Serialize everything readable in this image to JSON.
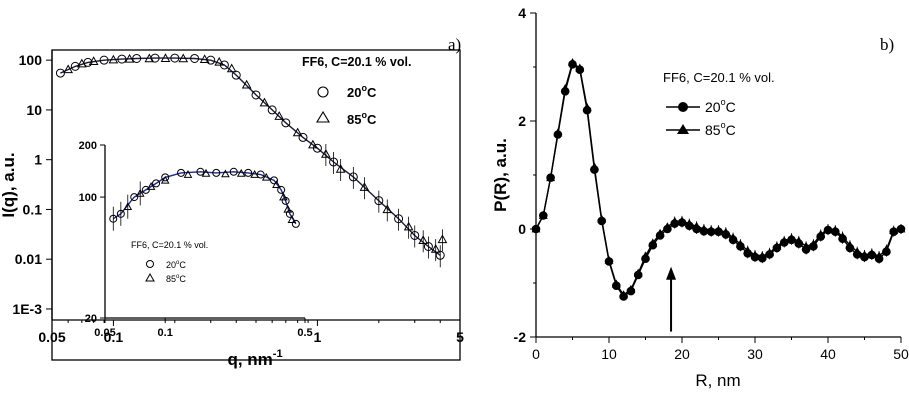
{
  "chart_data": [
    {
      "panel": "a)",
      "type": "scatter",
      "scale": "log-log",
      "xlabel": "q, nm",
      "xlabel_sup": "-1",
      "ylabel": "I(q), a.u.",
      "xlim": [
        0.05,
        5
      ],
      "ylim": [
        0.001,
        200
      ],
      "xticks": [
        {
          "v": 0.05,
          "t": "0.05"
        },
        {
          "v": 0.1,
          "t": "0.1"
        },
        {
          "v": 1,
          "t": "1"
        },
        {
          "v": 5,
          "t": "5"
        }
      ],
      "yticks": [
        {
          "v": 100,
          "t": "100"
        },
        {
          "v": 10,
          "t": "10"
        },
        {
          "v": 1,
          "t": "1"
        },
        {
          "v": 0.1,
          "t": "0.1"
        },
        {
          "v": 0.01,
          "t": "0.01"
        },
        {
          "v": 0.001,
          "t": "1E-3"
        }
      ],
      "legend": {
        "title": "FF6, C=20.1 % vol.",
        "placement": "top-right",
        "entries": [
          {
            "marker": "circle",
            "label": "20",
            "unit": "C"
          },
          {
            "marker": "triangle",
            "label": "85",
            "unit": "C"
          }
        ]
      },
      "series": [
        {
          "name": "20°C",
          "marker": "circle",
          "x": [
            0.055,
            0.065,
            0.075,
            0.09,
            0.11,
            0.13,
            0.16,
            0.2,
            0.25,
            0.3,
            0.35,
            0.4,
            0.5,
            0.6,
            0.7,
            0.85,
            1.0,
            1.2,
            1.5,
            2.0,
            2.5,
            3.0,
            3.5,
            4.0
          ],
          "y": [
            55,
            75,
            90,
            100,
            105,
            108,
            110,
            110,
            108,
            100,
            80,
            50,
            20,
            10,
            5.5,
            2.8,
            1.7,
            0.9,
            0.45,
            0.15,
            0.065,
            0.03,
            0.018,
            0.012
          ]
        },
        {
          "name": "85°C",
          "marker": "triangle",
          "x": [
            0.06,
            0.07,
            0.08,
            0.1,
            0.12,
            0.15,
            0.18,
            0.22,
            0.28,
            0.33,
            0.38,
            0.45,
            0.55,
            0.65,
            0.8,
            0.95,
            1.1,
            1.3,
            1.7,
            2.2,
            2.8,
            3.3,
            3.8,
            4.1
          ],
          "y": [
            65,
            85,
            95,
            102,
            106,
            108,
            109,
            108,
            104,
            92,
            68,
            32,
            14,
            7.5,
            3.5,
            2.0,
            1.3,
            0.65,
            0.28,
            0.1,
            0.045,
            0.024,
            0.016,
            0.025
          ]
        }
      ],
      "inset": {
        "scale": "log-log",
        "xlim": [
          0.05,
          0.5
        ],
        "ylim": [
          20,
          200
        ],
        "xticks": [
          {
            "v": 0.05,
            "t": "0.05"
          },
          {
            "v": 0.1,
            "t": "0.1"
          },
          {
            "v": 0.5,
            "t": "0.5"
          }
        ],
        "yticks": [
          {
            "v": 200,
            "t": "200"
          },
          {
            "v": 100,
            "t": "100"
          },
          {
            "v": 20,
            "t": "20"
          }
        ],
        "legend": {
          "title": "FF6, C=20.1 % vol.",
          "placement": "bottom-left",
          "entries": [
            {
              "marker": "circle",
              "label": "20",
              "unit": "C"
            },
            {
              "marker": "triangle",
              "label": "85",
              "unit": "C"
            }
          ]
        },
        "series": [
          {
            "name": "20°C",
            "marker": "circle",
            "x": [
              0.055,
              0.06,
              0.07,
              0.08,
              0.09,
              0.1,
              0.12,
              0.15,
              0.18,
              0.22,
              0.26,
              0.3,
              0.35,
              0.38,
              0.4,
              0.42,
              0.45
            ],
            "y": [
              75,
              80,
              100,
              110,
              120,
              130,
              138,
              140,
              138,
              140,
              138,
              135,
              125,
              110,
              95,
              80,
              70
            ]
          },
          {
            "name": "85°C",
            "marker": "triangle",
            "x": [
              0.065,
              0.075,
              0.085,
              0.1,
              0.13,
              0.16,
              0.2,
              0.24,
              0.28,
              0.32,
              0.36,
              0.39,
              0.41,
              0.43
            ],
            "y": [
              88,
              105,
              115,
              125,
              135,
              137,
              136,
              137,
              135,
              130,
              118,
              100,
              85,
              74
            ]
          }
        ]
      }
    },
    {
      "panel": "b)",
      "type": "line",
      "xlabel": "R, nm",
      "ylabel": "P(R), a.u.",
      "xlim": [
        0,
        50
      ],
      "ylim": [
        -2,
        4
      ],
      "xticks": [
        0,
        10,
        20,
        30,
        40,
        50
      ],
      "yticks": [
        4,
        2,
        0,
        -2
      ],
      "legend": {
        "title": "FF6, C=20.1 % vol.",
        "placement": "top-left",
        "entries": [
          {
            "marker": "circle",
            "label": "20",
            "unit": "C"
          },
          {
            "marker": "triangle",
            "label": "85",
            "unit": "C"
          }
        ]
      },
      "annotation": {
        "type": "arrow",
        "x": 18.5,
        "y_from": -1.9,
        "y_to": -0.7
      },
      "series": [
        {
          "name": "20°C",
          "marker": "circle",
          "x": [
            0,
            1,
            2,
            3,
            4,
            5,
            6,
            7,
            8,
            9,
            10,
            11,
            12,
            13,
            14,
            15,
            16,
            17,
            18,
            19,
            20,
            21,
            22,
            23,
            24,
            25,
            26,
            27,
            28,
            29,
            30,
            31,
            32,
            33,
            34,
            35,
            36,
            37,
            38,
            39,
            40,
            41,
            42,
            43,
            44,
            45,
            46,
            47,
            48,
            49,
            50
          ],
          "y": [
            0,
            0.25,
            0.95,
            1.75,
            2.55,
            3.05,
            2.95,
            2.2,
            1.1,
            0.15,
            -0.6,
            -1.05,
            -1.25,
            -1.15,
            -0.85,
            -0.55,
            -0.3,
            -0.12,
            0.0,
            0.1,
            0.12,
            0.06,
            0.0,
            -0.04,
            -0.05,
            -0.05,
            -0.1,
            -0.2,
            -0.32,
            -0.45,
            -0.52,
            -0.54,
            -0.47,
            -0.35,
            -0.25,
            -0.2,
            -0.27,
            -0.38,
            -0.32,
            -0.14,
            -0.02,
            -0.05,
            -0.18,
            -0.35,
            -0.47,
            -0.52,
            -0.48,
            -0.55,
            -0.42,
            -0.05,
            0.0
          ]
        },
        {
          "name": "85°C",
          "marker": "triangle",
          "x": [
            0,
            1,
            2,
            3,
            4,
            5,
            6,
            7,
            8,
            9,
            10,
            11,
            12,
            13,
            14,
            15,
            16,
            17,
            18,
            19,
            20,
            21,
            22,
            23,
            24,
            25,
            26,
            27,
            28,
            29,
            30,
            31,
            32,
            33,
            34,
            35,
            36,
            37,
            38,
            39,
            40,
            41,
            42,
            43,
            44,
            45,
            46,
            47,
            48,
            49,
            50
          ],
          "y": [
            0,
            0.25,
            0.95,
            1.78,
            2.6,
            3.08,
            2.98,
            2.25,
            1.15,
            0.18,
            -0.58,
            -1.02,
            -1.22,
            -1.12,
            -0.82,
            -0.5,
            -0.26,
            -0.08,
            0.04,
            0.14,
            0.15,
            0.1,
            0.05,
            0.0,
            -0.02,
            -0.02,
            -0.06,
            -0.16,
            -0.28,
            -0.4,
            -0.48,
            -0.5,
            -0.44,
            -0.32,
            -0.22,
            -0.17,
            -0.22,
            -0.32,
            -0.28,
            -0.1,
            0.0,
            -0.02,
            -0.14,
            -0.3,
            -0.42,
            -0.48,
            -0.45,
            -0.5,
            -0.38,
            -0.03,
            0.0
          ]
        }
      ]
    }
  ]
}
